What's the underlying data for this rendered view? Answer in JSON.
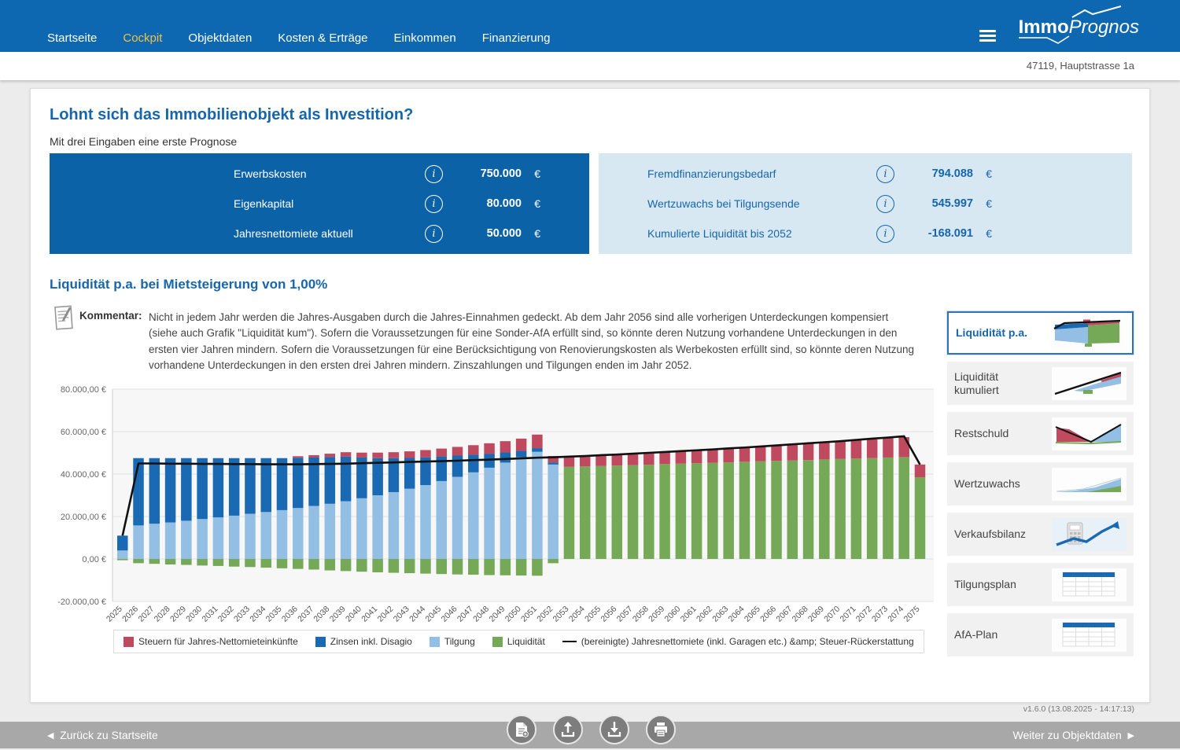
{
  "header": {
    "nav": [
      {
        "id": "startseite",
        "label": "Startseite",
        "active": false
      },
      {
        "id": "cockpit",
        "label": "Cockpit",
        "active": true
      },
      {
        "id": "objektdaten",
        "label": "Objektdaten",
        "active": false
      },
      {
        "id": "kosten-ertraege",
        "label": "Kosten & Erträge",
        "active": false
      },
      {
        "id": "einkommen",
        "label": "Einkommen",
        "active": false
      },
      {
        "id": "finanzierung",
        "label": "Finanzierung",
        "active": false
      }
    ],
    "logo": {
      "part1": "Immo",
      "part2": "Prognos"
    },
    "address": "47119, Hauptstrasse 1a"
  },
  "summary": {
    "title": "Lohnt sich das Immobilienobjekt als Investition?",
    "subtitle": "Mit drei Eingaben eine erste Prognose",
    "inputs": [
      {
        "label": "Erwerbskosten",
        "value": "750.000",
        "unit": "€"
      },
      {
        "label": "Eigenkapital",
        "value": "80.000",
        "unit": "€"
      },
      {
        "label": "Jahresnettomiete aktuell",
        "value": "50.000",
        "unit": "€"
      }
    ],
    "outputs": [
      {
        "label": "Fremdfinanzierungsbedarf",
        "value": "794.088",
        "unit": "€"
      },
      {
        "label": "Wertzuwachs bei Tilgungsende",
        "value": "545.997",
        "unit": "€"
      },
      {
        "label": "Kumulierte Liquidität bis 2052",
        "value": "-168.091",
        "unit": "€"
      }
    ]
  },
  "chart_section": {
    "title": "Liquidität p.a. bei Mietsteigerung von 1,00%",
    "comment_label": "Kommentar:",
    "comment_text": "Nicht in jedem Jahr werden die Jahres-Ausgaben durch die Jahres-Einnahmen gedeckt. Ab dem Jahr 2056 sind alle vorherigen Unterdeckungen kompensiert (siehe auch Grafik \"Liquidität kum\"). Sofern die Voraussetzungen für eine Sonder-AfA erfüllt sind, so könnte deren Nutzung vorhandene Unterdeckungen in den ersten vier Jahren mindern. Sofern die Voraussetzungen für eine Berücksichtigung von Renovierungskosten als Werbekosten erfüllt sind, so könnte deren Nutzung vorhandene Unterdeckungen in den ersten drei Jahren mindern. Zinszahlungen und Tilgungen enden im Jahr 2052."
  },
  "chart_data": {
    "type": "bar",
    "subtype": "stacked-bars-with-line",
    "title": "Liquidität p.a. bei Mietsteigerung von 1,00%",
    "ylim": [
      -20000,
      80000
    ],
    "ytick_step": 20000,
    "ytick_labels": [
      "80.000,00 €",
      "60.000,00 €",
      "40.000,00 €",
      "20.000,00 €",
      "0,00 €",
      "-20.000,00 €"
    ],
    "grid": true,
    "legend_position": "bottom",
    "categories": [
      2025,
      2026,
      2027,
      2028,
      2029,
      2030,
      2031,
      2032,
      2033,
      2034,
      2035,
      2036,
      2037,
      2038,
      2039,
      2040,
      2041,
      2042,
      2043,
      2044,
      2045,
      2046,
      2047,
      2048,
      2049,
      2050,
      2051,
      2052,
      2053,
      2054,
      2055,
      2056,
      2057,
      2058,
      2059,
      2060,
      2061,
      2062,
      2063,
      2064,
      2065,
      2066,
      2067,
      2068,
      2069,
      2070,
      2071,
      2072,
      2073,
      2074,
      2075
    ],
    "series": [
      {
        "role": "steuern",
        "kind": "bar",
        "name": "Steuern für Jahres-Nettomieteinkünfte",
        "color": "#bf4a5f",
        "values": [
          0,
          0,
          0,
          0,
          0,
          0,
          0,
          0,
          0,
          0,
          0,
          700,
          1100,
          1600,
          2100,
          2300,
          2600,
          2800,
          3100,
          3400,
          3700,
          4100,
          4500,
          4900,
          5300,
          5800,
          6400,
          3000,
          4700,
          4900,
          5100,
          5300,
          5500,
          5700,
          5900,
          6100,
          6300,
          6500,
          6700,
          7000,
          7200,
          7400,
          7600,
          7900,
          8100,
          8300,
          8600,
          8800,
          9100,
          9400,
          6000
        ]
      },
      {
        "role": "zinsen",
        "kind": "bar",
        "name": "Zinsen inkl. Disagio",
        "color": "#1a6ab3",
        "values": [
          7000,
          31700,
          30900,
          30300,
          29500,
          28700,
          27900,
          27100,
          26200,
          25400,
          24500,
          23700,
          22800,
          22000,
          21000,
          19200,
          17500,
          16000,
          14500,
          13100,
          11600,
          10000,
          8300,
          6600,
          4800,
          3000,
          1700,
          1000,
          0,
          0,
          0,
          0,
          0,
          0,
          0,
          0,
          0,
          0,
          0,
          0,
          0,
          0,
          0,
          0,
          0,
          0,
          0,
          0,
          0,
          0,
          0
        ]
      },
      {
        "role": "tilgung",
        "kind": "bar",
        "name": "Tilgung",
        "color": "#94bfe4",
        "values": [
          4000,
          15800,
          16600,
          17200,
          18000,
          18800,
          19600,
          20400,
          21300,
          22100,
          23000,
          24000,
          25000,
          26000,
          27200,
          28600,
          30000,
          31500,
          33100,
          34800,
          36700,
          38700,
          40800,
          43000,
          45400,
          47900,
          50500,
          44500,
          0,
          0,
          0,
          0,
          0,
          0,
          0,
          0,
          0,
          0,
          0,
          0,
          0,
          0,
          0,
          0,
          0,
          0,
          0,
          0,
          0,
          0,
          0
        ]
      },
      {
        "role": "liquiditaet",
        "kind": "bar",
        "name": "Liquidität",
        "color": "#76a957",
        "values": [
          -600,
          -2000,
          -2300,
          -2600,
          -2800,
          -3100,
          -3300,
          -3600,
          -3800,
          -4100,
          -4400,
          -4700,
          -5000,
          -5400,
          -5700,
          -6000,
          -6300,
          -6500,
          -6700,
          -6900,
          -7100,
          -7300,
          -7400,
          -7600,
          -7700,
          -7800,
          -7900,
          -2000,
          43400,
          43600,
          43800,
          44000,
          44200,
          44400,
          44700,
          44900,
          45100,
          45300,
          45500,
          45800,
          46000,
          46200,
          46400,
          46600,
          46900,
          47100,
          47300,
          47500,
          47800,
          48000,
          38500
        ]
      },
      {
        "role": "miete",
        "kind": "line",
        "name": "(bereinigte) Jahresnettomiete (inkl. Garagen etc.) &amp; Steuer-Rückerstattung",
        "color": "#111111",
        "values": [
          11000,
          45000,
          45000,
          44900,
          44900,
          44800,
          44800,
          44700,
          44700,
          44600,
          44600,
          44600,
          44700,
          44800,
          44900,
          45100,
          45300,
          45500,
          45700,
          45900,
          46100,
          46300,
          46600,
          46800,
          47100,
          47400,
          47700,
          47900,
          48200,
          48500,
          48900,
          49200,
          49600,
          50000,
          50400,
          50800,
          51200,
          51600,
          52100,
          52500,
          53000,
          53500,
          54000,
          54500,
          55000,
          55500,
          56100,
          56700,
          57200,
          57800,
          44500
        ]
      }
    ]
  },
  "sidebar": {
    "items": [
      {
        "label": "Liquidität p.a.",
        "selected": true
      },
      {
        "label": "Liquidität kumuliert",
        "selected": false
      },
      {
        "label": "Restschuld",
        "selected": false
      },
      {
        "label": "Wertzuwachs",
        "selected": false
      },
      {
        "label": "Verkaufsbilanz",
        "selected": false
      },
      {
        "label": "Tilgungsplan",
        "selected": false
      },
      {
        "label": "AfA-Plan",
        "selected": false
      }
    ]
  },
  "footer": {
    "back_label": "Zurück zu Startseite",
    "next_label": "Weiter zu Objektdaten",
    "version": "v1.6.0 (13.08.2025 - 14:17:13)",
    "buttons": [
      "new-document",
      "upload",
      "download",
      "print"
    ]
  }
}
